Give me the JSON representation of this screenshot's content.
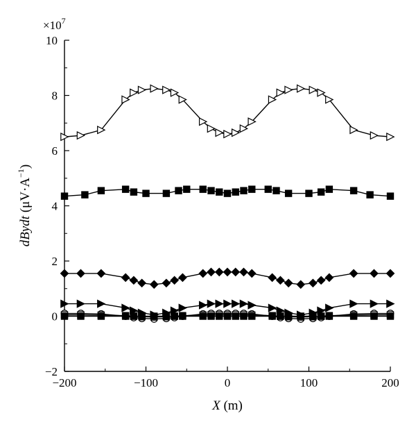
{
  "chart_data": {
    "type": "line",
    "multiplier_label": "×10",
    "multiplier_exp": "7",
    "xlabel_main": "X",
    "xlabel_unit": " (m)",
    "ylabel_main": "dBydt",
    "ylabel_unit": " (μV·A",
    "ylabel_exp": "−1",
    "ylabel_close": ")",
    "xlim": [
      -200,
      200
    ],
    "ylim": [
      -2,
      10
    ],
    "grid": false,
    "x_ticks": [
      -200,
      -100,
      0,
      100,
      200
    ],
    "x_tick_labels": [
      "−200",
      "−100",
      "0",
      "100",
      "200"
    ],
    "y_ticks": [
      -2,
      0,
      2,
      4,
      6,
      8,
      10
    ],
    "y_tick_labels": [
      "−2",
      "0",
      "2",
      "4",
      "6",
      "8",
      "10"
    ],
    "series": [
      {
        "marker": "open-triangle-right",
        "x": [
          -200,
          -180,
          -155,
          -125,
          -115,
          -105,
          -90,
          -75,
          -65,
          -55,
          -30,
          -20,
          -10,
          0,
          10,
          20,
          30,
          55,
          65,
          75,
          90,
          105,
          115,
          125,
          155,
          180,
          200
        ],
        "y": [
          6.5,
          6.55,
          6.75,
          7.85,
          8.1,
          8.2,
          8.25,
          8.2,
          8.1,
          7.85,
          7.05,
          6.8,
          6.65,
          6.6,
          6.65,
          6.8,
          7.05,
          7.85,
          8.1,
          8.2,
          8.25,
          8.2,
          8.1,
          7.85,
          6.75,
          6.55,
          6.5
        ]
      },
      {
        "marker": "filled-square",
        "x": [
          -200,
          -175,
          -155,
          -125,
          -115,
          -100,
          -75,
          -60,
          -50,
          -30,
          -20,
          -10,
          0,
          10,
          20,
          30,
          50,
          60,
          75,
          100,
          115,
          125,
          155,
          175,
          200
        ],
        "y": [
          4.35,
          4.4,
          4.55,
          4.6,
          4.5,
          4.45,
          4.45,
          4.55,
          4.6,
          4.6,
          4.55,
          4.5,
          4.45,
          4.5,
          4.55,
          4.6,
          4.6,
          4.55,
          4.45,
          4.45,
          4.5,
          4.6,
          4.55,
          4.4,
          4.35
        ]
      },
      {
        "marker": "filled-diamond",
        "x": [
          -200,
          -180,
          -155,
          -125,
          -115,
          -105,
          -90,
          -75,
          -65,
          -55,
          -30,
          -20,
          -10,
          0,
          10,
          20,
          30,
          55,
          65,
          75,
          90,
          105,
          115,
          125,
          155,
          180,
          200
        ],
        "y": [
          1.55,
          1.55,
          1.55,
          1.4,
          1.3,
          1.2,
          1.15,
          1.2,
          1.3,
          1.4,
          1.55,
          1.6,
          1.6,
          1.6,
          1.6,
          1.6,
          1.55,
          1.4,
          1.3,
          1.2,
          1.15,
          1.2,
          1.3,
          1.4,
          1.55,
          1.55,
          1.55
        ]
      },
      {
        "marker": "filled-triangle-right",
        "x": [
          -200,
          -180,
          -155,
          -125,
          -115,
          -105,
          -90,
          -75,
          -65,
          -55,
          -30,
          -20,
          -10,
          0,
          10,
          20,
          30,
          55,
          65,
          75,
          90,
          105,
          115,
          125,
          155,
          180,
          200
        ],
        "y": [
          0.45,
          0.45,
          0.45,
          0.3,
          0.2,
          0.12,
          0.05,
          0.12,
          0.2,
          0.3,
          0.4,
          0.45,
          0.45,
          0.45,
          0.45,
          0.45,
          0.4,
          0.3,
          0.2,
          0.12,
          0.05,
          0.12,
          0.2,
          0.3,
          0.45,
          0.45,
          0.45
        ]
      },
      {
        "marker": "open-circle",
        "x": [
          -200,
          -180,
          -155,
          -125,
          -115,
          -105,
          -90,
          -75,
          -65,
          -55,
          -30,
          -20,
          -10,
          0,
          10,
          20,
          30,
          55,
          65,
          75,
          90,
          105,
          115,
          125,
          155,
          180,
          200
        ],
        "y": [
          0.1,
          0.1,
          0.08,
          0.0,
          -0.05,
          -0.08,
          -0.1,
          -0.08,
          -0.05,
          0.0,
          0.08,
          0.1,
          0.1,
          0.1,
          0.1,
          0.1,
          0.08,
          0.0,
          -0.05,
          -0.08,
          -0.1,
          -0.08,
          -0.05,
          0.0,
          0.08,
          0.1,
          0.1
        ]
      },
      {
        "marker": "open-square",
        "x": [
          -200,
          -180,
          -155,
          -125,
          -115,
          -105,
          -90,
          -75,
          -65,
          -55,
          -30,
          -20,
          -10,
          0,
          10,
          20,
          30,
          55,
          65,
          75,
          90,
          105,
          115,
          125,
          155,
          180,
          200
        ],
        "y": [
          0.05,
          0.05,
          0.04,
          0.02,
          0.0,
          -0.02,
          -0.03,
          -0.02,
          0.0,
          0.02,
          0.04,
          0.05,
          0.05,
          0.05,
          0.05,
          0.05,
          0.04,
          0.02,
          0.0,
          -0.02,
          -0.03,
          -0.02,
          0.0,
          0.02,
          0.04,
          0.05,
          0.05
        ]
      },
      {
        "marker": "filled-square",
        "x": [
          -200,
          -180,
          -155,
          -125,
          -115,
          -105,
          -90,
          -75,
          -65,
          -55,
          -30,
          -20,
          -10,
          0,
          10,
          20,
          30,
          55,
          65,
          75,
          90,
          105,
          115,
          125,
          155,
          180,
          200
        ],
        "y": [
          0.0,
          0.0,
          0.0,
          0.0,
          0.0,
          0.0,
          0.0,
          0.0,
          0.0,
          0.0,
          0.0,
          0.0,
          0.0,
          0.0,
          0.0,
          0.0,
          0.0,
          0.0,
          0.0,
          0.0,
          0.0,
          0.0,
          0.0,
          0.0,
          0.0,
          0.0,
          0.0
        ]
      }
    ]
  }
}
